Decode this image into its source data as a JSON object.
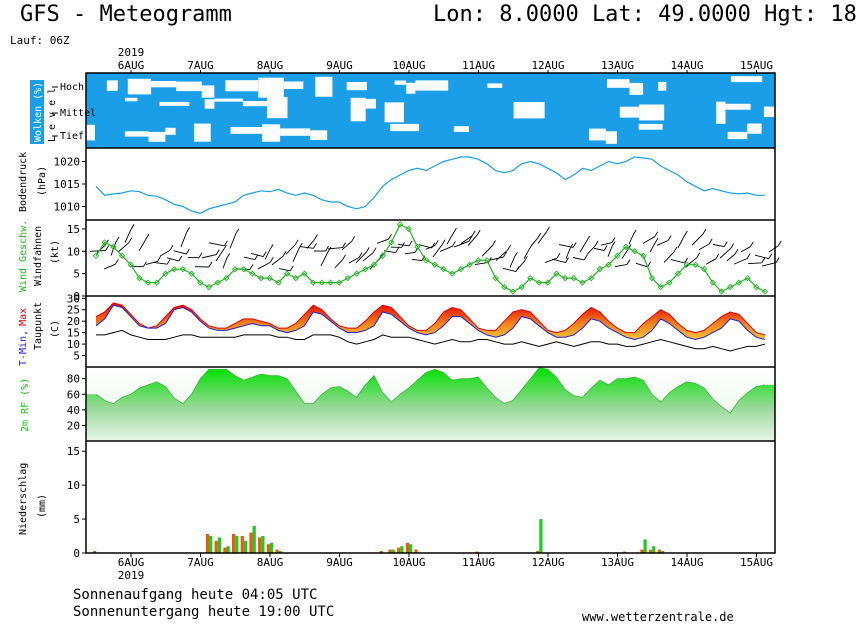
{
  "header": {
    "title": "GFS - Meteogramm",
    "location": "Lon: 8.0000 Lat: 49.0000 Hgt: 18",
    "run": "Lauf: 06Z"
  },
  "dates": {
    "year": "2019",
    "labels": [
      "6AUG",
      "7AUG",
      "8AUG",
      "9AUG",
      "10AUG",
      "11AUG",
      "12AUG",
      "13AUG",
      "14AUG",
      "15AUG"
    ]
  },
  "footer": {
    "sunrise": "Sonnenaufgang heute 04:05 UTC",
    "sunset": "Sonnenuntergang heute 19:00 UTC",
    "website": "www.wetterzentrale.de"
  },
  "colors": {
    "cloud": "#1a9ee8",
    "pressure": "#1a9ee8",
    "wind": "#22b422",
    "tmax": "#e60000",
    "tmin": "#1e1ed8",
    "rh": "#16c816",
    "precip_rain": "#e85a10",
    "precip_conv": "#22c822"
  },
  "chart_data": [
    {
      "type": "heatmap",
      "panel": "clouds",
      "ylabel": "Wolken (%)",
      "ylabel_level": "L e v e l",
      "rows": [
        "Hoch",
        "Mittel",
        "Tief"
      ],
      "note": "cloud coverage per level over time (blue = cloudy)"
    },
    {
      "type": "line",
      "panel": "pressure",
      "ylabel": "Bodendruck",
      "yunit": "(hPa)",
      "ylim": [
        1007,
        1023
      ],
      "yticks": [
        1010,
        1015,
        1020
      ],
      "x_days": [
        0,
        0.125,
        0.25,
        0.375,
        0.5,
        0.625,
        0.75,
        0.875,
        1,
        1.125,
        1.25,
        1.375,
        1.5,
        1.625,
        1.75,
        1.875,
        2,
        2.125,
        2.25,
        2.375,
        2.5,
        2.625,
        2.75,
        2.875,
        3,
        3.125,
        3.25,
        3.375,
        3.5,
        3.625,
        3.75,
        3.875,
        4,
        4.125,
        4.25,
        4.375,
        4.5,
        4.625,
        4.75,
        4.875,
        5,
        5.125,
        5.25,
        5.375,
        5.5,
        5.625,
        5.75,
        5.875,
        6,
        6.125,
        6.25,
        6.375,
        6.5,
        6.625,
        6.75,
        6.875,
        7,
        7.125,
        7.25,
        7.375,
        7.5,
        7.625,
        7.75,
        7.875,
        8,
        8.125,
        8.25,
        8.375,
        8.5,
        8.625,
        8.75,
        8.875,
        9,
        9.125,
        9.25,
        9.375,
        9.5,
        9.625
      ],
      "values": [
        1014.5,
        1012.5,
        1012.8,
        1013.0,
        1013.5,
        1013.3,
        1012.5,
        1012.3,
        1011.5,
        1010.5,
        1010.0,
        1009.0,
        1008.5,
        1009.5,
        1010.0,
        1010.5,
        1011.0,
        1012.5,
        1013.0,
        1013.5,
        1013.3,
        1013.8,
        1013.0,
        1012.5,
        1013.0,
        1012.5,
        1011.5,
        1011.0,
        1011.0,
        1010.0,
        1009.5,
        1010.0,
        1012.0,
        1014.5,
        1016.0,
        1017.0,
        1018.0,
        1018.5,
        1018.0,
        1019.0,
        1020.0,
        1020.5,
        1021.0,
        1021.0,
        1020.5,
        1019.5,
        1018.0,
        1017.5,
        1018.0,
        1019.5,
        1020.0,
        1019.5,
        1018.5,
        1017.5,
        1016.0,
        1017.0,
        1018.5,
        1018.0,
        1019.0,
        1020.0,
        1019.5,
        1020.0,
        1021.0,
        1020.8,
        1020.5,
        1019.0,
        1018.0,
        1017.0,
        1015.5,
        1014.5,
        1013.5,
        1014.0,
        1013.5,
        1013.0,
        1012.8,
        1013.0,
        1012.5,
        1012.5
      ]
    },
    {
      "type": "line",
      "panel": "wind",
      "series_label": "Wind Geschw.",
      "ylabel": "Windfahnen",
      "yunit": "(kt)",
      "ylim": [
        0,
        17
      ],
      "yticks": [
        0,
        5,
        10,
        15
      ],
      "x_days": [
        0,
        0.125,
        0.25,
        0.375,
        0.5,
        0.625,
        0.75,
        0.875,
        1,
        1.125,
        1.25,
        1.375,
        1.5,
        1.625,
        1.75,
        1.875,
        2,
        2.125,
        2.25,
        2.375,
        2.5,
        2.625,
        2.75,
        2.875,
        3,
        3.125,
        3.25,
        3.375,
        3.5,
        3.625,
        3.75,
        3.875,
        4,
        4.125,
        4.25,
        4.375,
        4.5,
        4.625,
        4.75,
        4.875,
        5,
        5.125,
        5.25,
        5.375,
        5.5,
        5.625,
        5.75,
        5.875,
        6,
        6.125,
        6.25,
        6.375,
        6.5,
        6.625,
        6.75,
        6.875,
        7,
        7.125,
        7.25,
        7.375,
        7.5,
        7.625,
        7.75,
        7.875,
        8,
        8.125,
        8.25,
        8.375,
        8.5,
        8.625,
        8.75,
        8.875,
        9,
        9.125,
        9.25,
        9.375,
        9.5,
        9.625
      ],
      "values": [
        9,
        12,
        11,
        9,
        7,
        4,
        3,
        3,
        5,
        6,
        6,
        5,
        3,
        2,
        3,
        4,
        6,
        6,
        5,
        4,
        4,
        3,
        5,
        4,
        5,
        3,
        3,
        3,
        3,
        4,
        5,
        6,
        7,
        9,
        12,
        16,
        15,
        11,
        8,
        7,
        6,
        5,
        6,
        7,
        8,
        8,
        4,
        2,
        1,
        2,
        4,
        3,
        3,
        5,
        4,
        4,
        3,
        4,
        6,
        7,
        9,
        11,
        10,
        9,
        4,
        2,
        3,
        5,
        7,
        7,
        6,
        3,
        1,
        2,
        3,
        4,
        2,
        1
      ]
    },
    {
      "type": "area",
      "panel": "temperature",
      "ylabel_tmin": "T-Min,",
      "ylabel_tmax": "Max",
      "ylabel_dew": "Taupunkt",
      "yunit": "(C)",
      "ylim": [
        0,
        31
      ],
      "yticks": [
        5,
        10,
        15,
        20,
        25,
        30
      ],
      "x_days": [
        0,
        0.125,
        0.25,
        0.375,
        0.5,
        0.625,
        0.75,
        0.875,
        1,
        1.125,
        1.25,
        1.375,
        1.5,
        1.625,
        1.75,
        1.875,
        2,
        2.125,
        2.25,
        2.375,
        2.5,
        2.625,
        2.75,
        2.875,
        3,
        3.125,
        3.25,
        3.375,
        3.5,
        3.625,
        3.75,
        3.875,
        4,
        4.125,
        4.25,
        4.375,
        4.5,
        4.625,
        4.75,
        4.875,
        5,
        5.125,
        5.25,
        5.375,
        5.5,
        5.625,
        5.75,
        5.875,
        6,
        6.125,
        6.25,
        6.375,
        6.5,
        6.625,
        6.75,
        6.875,
        7,
        7.125,
        7.25,
        7.375,
        7.5,
        7.625,
        7.75,
        7.875,
        8,
        8.125,
        8.25,
        8.375,
        8.5,
        8.625,
        8.75,
        8.875,
        9,
        9.125,
        9.25,
        9.375,
        9.5,
        9.625
      ],
      "tmax": [
        22,
        24,
        28,
        27,
        23,
        19,
        17,
        18,
        22,
        26,
        27,
        25,
        21,
        18,
        17,
        17,
        19,
        21,
        21,
        20,
        19,
        17,
        17,
        19,
        23,
        27,
        25,
        21,
        18,
        17,
        17,
        20,
        24,
        27,
        26,
        22,
        18,
        16,
        16,
        19,
        24,
        26,
        25,
        21,
        17,
        16,
        16,
        20,
        24,
        25,
        24,
        20,
        16,
        15,
        16,
        19,
        23,
        26,
        24,
        20,
        17,
        15,
        15,
        19,
        22,
        25,
        23,
        19,
        16,
        15,
        16,
        19,
        22,
        24,
        23,
        19,
        15,
        14
      ],
      "tmin": [
        18,
        21,
        27,
        26,
        22,
        18,
        17,
        17,
        19,
        25,
        26,
        24,
        20,
        17,
        16,
        16,
        17,
        18,
        19,
        18,
        18,
        16,
        15,
        16,
        18,
        24,
        23,
        20,
        17,
        15,
        15,
        16,
        18,
        24,
        23,
        20,
        17,
        15,
        14,
        15,
        18,
        22,
        22,
        19,
        16,
        14,
        13,
        14,
        17,
        22,
        21,
        18,
        15,
        13,
        13,
        14,
        17,
        21,
        20,
        17,
        15,
        13,
        12,
        13,
        16,
        21,
        19,
        16,
        13,
        12,
        13,
        15,
        17,
        21,
        20,
        16,
        13,
        12
      ],
      "dewpoint": [
        14,
        14,
        15,
        16,
        14,
        13,
        12,
        12,
        12,
        13,
        14,
        14,
        13,
        13,
        13,
        13,
        13,
        14,
        14,
        14,
        14,
        13,
        13,
        12,
        12,
        14,
        14,
        14,
        13,
        11,
        10,
        11,
        12,
        14,
        13,
        13,
        13,
        12,
        11,
        10,
        11,
        12,
        11,
        11,
        12,
        12,
        11,
        10,
        10,
        11,
        10,
        9,
        10,
        11,
        10,
        9,
        10,
        11,
        11,
        10,
        10,
        9,
        9,
        10,
        11,
        12,
        11,
        10,
        9,
        8,
        8,
        9,
        8,
        7,
        8,
        9,
        9,
        10
      ]
    },
    {
      "type": "area",
      "panel": "humidity",
      "ylabel": "2m RF (%)",
      "ylim": [
        0,
        95
      ],
      "yticks": [
        20,
        40,
        60,
        80
      ],
      "x_days": [
        0,
        0.125,
        0.25,
        0.375,
        0.5,
        0.625,
        0.75,
        0.875,
        1,
        1.125,
        1.25,
        1.375,
        1.5,
        1.625,
        1.75,
        1.875,
        2,
        2.125,
        2.25,
        2.375,
        2.5,
        2.625,
        2.75,
        2.875,
        3,
        3.125,
        3.25,
        3.375,
        3.5,
        3.625,
        3.75,
        3.875,
        4,
        4.125,
        4.25,
        4.375,
        4.5,
        4.625,
        4.75,
        4.875,
        5,
        5.125,
        5.25,
        5.375,
        5.5,
        5.625,
        5.75,
        5.875,
        6,
        6.125,
        6.25,
        6.375,
        6.5,
        6.625,
        6.75,
        6.875,
        7,
        7.125,
        7.25,
        7.375,
        7.5,
        7.625,
        7.75,
        7.875,
        8,
        8.125,
        8.25,
        8.375,
        8.5,
        8.625,
        8.75,
        8.875,
        9,
        9.125,
        9.25,
        9.375,
        9.5,
        9.625
      ],
      "values": [
        60,
        52,
        48,
        56,
        60,
        68,
        72,
        76,
        70,
        55,
        48,
        60,
        80,
        92,
        92,
        92,
        84,
        78,
        82,
        86,
        84,
        84,
        80,
        64,
        48,
        48,
        60,
        68,
        70,
        64,
        56,
        72,
        84,
        62,
        50,
        60,
        68,
        78,
        88,
        92,
        88,
        78,
        80,
        80,
        82,
        68,
        56,
        48,
        52,
        66,
        80,
        94,
        92,
        82,
        66,
        58,
        56,
        68,
        78,
        72,
        80,
        80,
        82,
        78,
        60,
        50,
        62,
        70,
        76,
        74,
        68,
        54,
        44,
        36,
        52,
        62,
        70,
        72
      ]
    },
    {
      "type": "bar",
      "panel": "precipitation",
      "ylabel": "Niederschlag",
      "yunit": "(mm)",
      "ylim": [
        0,
        16.5
      ],
      "yticks": [
        0,
        5,
        10,
        15
      ],
      "bars": [
        {
          "day": 0.0,
          "rain": 0.3,
          "conv": 0.0
        },
        {
          "day": 1.625,
          "rain": 2.8,
          "conv": 2.5
        },
        {
          "day": 1.75,
          "rain": 1.8,
          "conv": 2.3
        },
        {
          "day": 1.875,
          "rain": 0.8,
          "conv": 1.0
        },
        {
          "day": 2.0,
          "rain": 2.8,
          "conv": 2.5
        },
        {
          "day": 2.125,
          "rain": 2.5,
          "conv": 1.8
        },
        {
          "day": 2.25,
          "rain": 3.0,
          "conv": 4.0
        },
        {
          "day": 2.375,
          "rain": 2.3,
          "conv": 2.5
        },
        {
          "day": 2.5,
          "rain": 1.3,
          "conv": 1.5
        },
        {
          "day": 2.625,
          "rain": 0.5,
          "conv": 0.3
        },
        {
          "day": 4.125,
          "rain": 0.3,
          "conv": 0.0
        },
        {
          "day": 4.25,
          "rain": 0.5,
          "conv": 0.5
        },
        {
          "day": 4.375,
          "rain": 0.8,
          "conv": 1.0
        },
        {
          "day": 4.5,
          "rain": 1.5,
          "conv": 1.3
        },
        {
          "day": 4.625,
          "rain": 0.5,
          "conv": 0.0
        },
        {
          "day": 5.5,
          "rain": 0.2,
          "conv": 0.0
        },
        {
          "day": 6.375,
          "rain": 0.3,
          "conv": 5.0
        },
        {
          "day": 7.625,
          "rain": 0.2,
          "conv": 0.0
        },
        {
          "day": 7.875,
          "rain": 0.5,
          "conv": 2.0
        },
        {
          "day": 8.0,
          "rain": 0.5,
          "conv": 1.0
        },
        {
          "day": 8.125,
          "rain": 0.5,
          "conv": 0.3
        }
      ]
    }
  ]
}
